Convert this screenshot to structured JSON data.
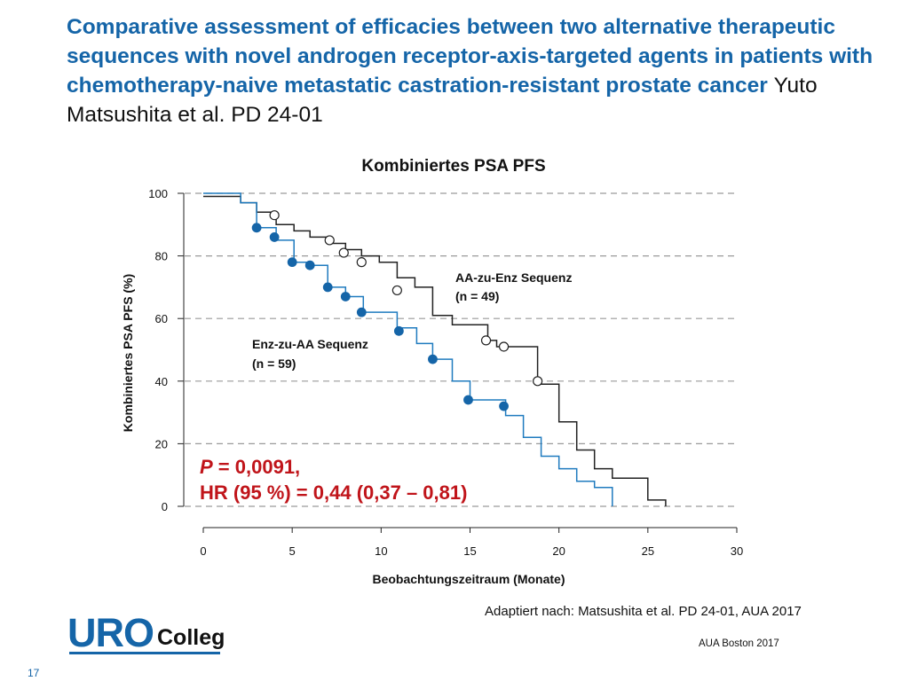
{
  "slide": {
    "title_main": "Comparative assessment of efficacies between two alternative therapeutic sequences with novel androgen receptor-axis-targeted agents in patients with chemotherapy-naive metastatic castration-resistant prostate cancer",
    "title_cite": "Yuto Matsushita et al. PD 24-01",
    "source": "Adaptiert nach: Matsushita et al. PD 24-01, AUA 2017",
    "conference": "AUA Boston 2017",
    "slide_number": "17",
    "logo": {
      "part1": "URO",
      "part2": "Colleg"
    }
  },
  "chart_data": {
    "type": "line",
    "title": "Kombiniertes PSA PFS",
    "xlabel": "Beobachtungszeitraum (Monate)",
    "ylabel": "Kombiniertes PSA PFS (%)",
    "xlim": [
      0,
      30
    ],
    "ylim": [
      0,
      100
    ],
    "xticks": [
      0,
      5,
      10,
      15,
      20,
      25,
      30
    ],
    "yticks": [
      0,
      20,
      40,
      60,
      80,
      100
    ],
    "grid": "horizontal dashed",
    "series": [
      {
        "name": "AA-zu-Enz Sequenz",
        "n_label": "(n = 49)",
        "color": "#222222",
        "marker": "open circle",
        "steps": [
          [
            0,
            99
          ],
          [
            2.1,
            99
          ],
          [
            2.1,
            97
          ],
          [
            3,
            97
          ],
          [
            3,
            94
          ],
          [
            4.1,
            94
          ],
          [
            4.1,
            90
          ],
          [
            5.1,
            90
          ],
          [
            5.1,
            88
          ],
          [
            6,
            88
          ],
          [
            6,
            86
          ],
          [
            7.1,
            86
          ],
          [
            7.1,
            84
          ],
          [
            8,
            84
          ],
          [
            8,
            82
          ],
          [
            8.9,
            82
          ],
          [
            8.9,
            80
          ],
          [
            9.9,
            80
          ],
          [
            9.9,
            78
          ],
          [
            10.9,
            78
          ],
          [
            10.9,
            73
          ],
          [
            11.9,
            73
          ],
          [
            11.9,
            70
          ],
          [
            12.9,
            70
          ],
          [
            12.9,
            61
          ],
          [
            14,
            61
          ],
          [
            14,
            58
          ],
          [
            16,
            58
          ],
          [
            16,
            53
          ],
          [
            16.5,
            53
          ],
          [
            16.5,
            51
          ],
          [
            18.8,
            51
          ],
          [
            18.8,
            39
          ],
          [
            20,
            39
          ],
          [
            20,
            27
          ],
          [
            21,
            27
          ],
          [
            21,
            18
          ],
          [
            22,
            18
          ],
          [
            22,
            12
          ],
          [
            23,
            12
          ],
          [
            23,
            9
          ],
          [
            25,
            9
          ],
          [
            25,
            2
          ],
          [
            26,
            2
          ],
          [
            26,
            0
          ]
        ],
        "censored": [
          [
            4,
            93
          ],
          [
            7.1,
            85
          ],
          [
            7.9,
            81
          ],
          [
            8.9,
            78
          ],
          [
            10.9,
            69
          ],
          [
            15.9,
            53
          ],
          [
            16.9,
            51
          ],
          [
            18.8,
            40
          ]
        ]
      },
      {
        "name": "Enz-zu-AA Sequenz",
        "n_label": "(n = 59)",
        "color": "#1f7bbf",
        "marker": "filled circle",
        "steps": [
          [
            0,
            100
          ],
          [
            2.1,
            100
          ],
          [
            2.1,
            97
          ],
          [
            3,
            97
          ],
          [
            3,
            89
          ],
          [
            4.1,
            89
          ],
          [
            4.1,
            85
          ],
          [
            5.1,
            85
          ],
          [
            5.1,
            78
          ],
          [
            6,
            78
          ],
          [
            6,
            77
          ],
          [
            7,
            77
          ],
          [
            7,
            70
          ],
          [
            8,
            70
          ],
          [
            8,
            67
          ],
          [
            9,
            67
          ],
          [
            9,
            62
          ],
          [
            10.9,
            62
          ],
          [
            10.9,
            57
          ],
          [
            12,
            57
          ],
          [
            12,
            52
          ],
          [
            12.9,
            52
          ],
          [
            12.9,
            47
          ],
          [
            14,
            47
          ],
          [
            14,
            40
          ],
          [
            15,
            40
          ],
          [
            15,
            34
          ],
          [
            17,
            34
          ],
          [
            17,
            29
          ],
          [
            18,
            29
          ],
          [
            18,
            22
          ],
          [
            19,
            22
          ],
          [
            19,
            16
          ],
          [
            20,
            16
          ],
          [
            20,
            12
          ],
          [
            21,
            12
          ],
          [
            21,
            8
          ],
          [
            22,
            8
          ],
          [
            22,
            6
          ],
          [
            23,
            6
          ],
          [
            23,
            0
          ]
        ],
        "censored": [
          [
            3,
            89
          ],
          [
            4,
            86
          ],
          [
            5,
            78
          ],
          [
            6,
            77
          ],
          [
            7,
            70
          ],
          [
            8,
            67
          ],
          [
            8.9,
            62
          ],
          [
            11,
            56
          ],
          [
            12.9,
            47
          ],
          [
            14.9,
            34
          ],
          [
            16.9,
            32
          ]
        ]
      }
    ],
    "annotations": {
      "p_prefix": "P",
      "p_value": " = 0,0091,",
      "hr": "HR (95 %) = 0,44 (0,37 – 0,81)",
      "color": "#c0141a"
    }
  }
}
